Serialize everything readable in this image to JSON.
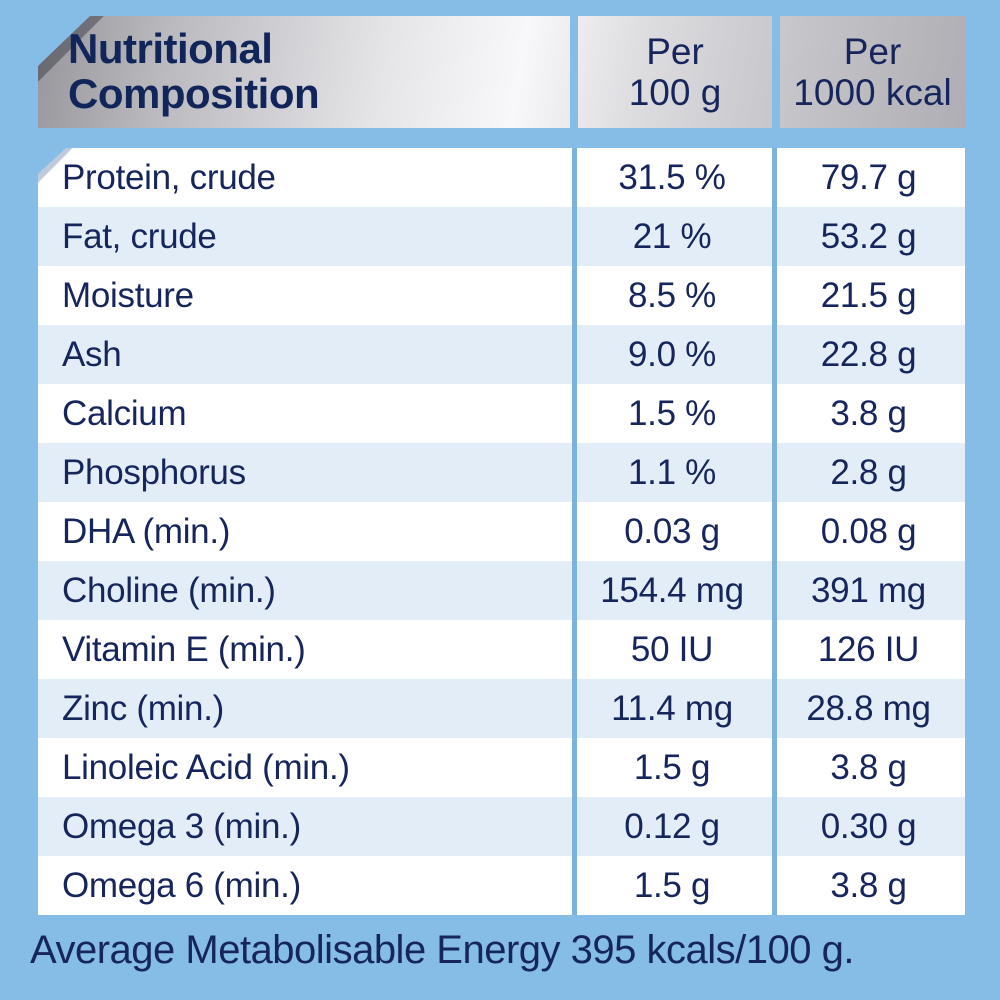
{
  "page": {
    "background_color": "#85BDE6",
    "text_color": "#16265C"
  },
  "table": {
    "title": "Nutritional\nComposition",
    "columns": [
      {
        "label": "Per\n100 g"
      },
      {
        "label": "Per\n1000 kcal"
      }
    ],
    "rows": [
      {
        "label": "Protein, crude",
        "per_100g": "31.5 %",
        "per_1000kcal": "79.7 g"
      },
      {
        "label": "Fat, crude",
        "per_100g": "21 %",
        "per_1000kcal": "53.2 g"
      },
      {
        "label": "Moisture",
        "per_100g": "8.5 %",
        "per_1000kcal": "21.5 g"
      },
      {
        "label": "Ash",
        "per_100g": "9.0 %",
        "per_1000kcal": "22.8 g"
      },
      {
        "label": "Calcium",
        "per_100g": "1.5 %",
        "per_1000kcal": "3.8 g"
      },
      {
        "label": "Phosphorus",
        "per_100g": "1.1 %",
        "per_1000kcal": "2.8 g"
      },
      {
        "label": "DHA (min.)",
        "per_100g": "0.03 g",
        "per_1000kcal": "0.08 g"
      },
      {
        "label": "Choline (min.)",
        "per_100g": "154.4 mg",
        "per_1000kcal": "391 mg"
      },
      {
        "label": "Vitamin E (min.)",
        "per_100g": "50 IU",
        "per_1000kcal": "126 IU"
      },
      {
        "label": "Zinc (min.)",
        "per_100g": "11.4 mg",
        "per_1000kcal": "28.8 mg"
      },
      {
        "label": "Linoleic Acid (min.)",
        "per_100g": "1.5 g",
        "per_1000kcal": "3.8 g"
      },
      {
        "label": "Omega 3 (min.)",
        "per_100g": "0.12 g",
        "per_1000kcal": "0.30 g"
      },
      {
        "label": "Omega 6 (min.)",
        "per_100g": "1.5 g",
        "per_1000kcal": "3.8 g"
      }
    ]
  },
  "footer": {
    "text": "Average Metabolisable Energy 395 kcals/100 g."
  },
  "colors": {
    "background": "#85BDE6",
    "row_white": "#FFFFFF",
    "row_alt_blue": "#E3EDF7",
    "separator_blue": "#7CB3DD",
    "text_navy": "#16265C",
    "header_silver_light": "#F8F8FA",
    "header_silver_dark": "#96969C"
  }
}
